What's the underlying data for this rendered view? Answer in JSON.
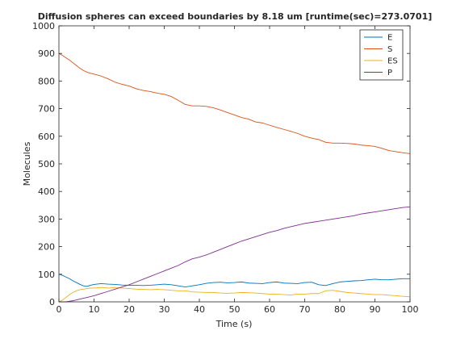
{
  "chart_data": {
    "type": "line",
    "title": "Diffusion spheres can exceed boundaries by 8.18 um [runtime(sec)=273.0701]",
    "xlabel": "Time (s)",
    "ylabel": "Molecules",
    "xlim": [
      0,
      100
    ],
    "ylim": [
      0,
      1000
    ],
    "xticks": [
      0,
      10,
      20,
      30,
      40,
      50,
      60,
      70,
      80,
      90,
      100
    ],
    "yticks": [
      0,
      100,
      200,
      300,
      400,
      500,
      600,
      700,
      800,
      900,
      1000
    ],
    "grid": false,
    "legend_position": "top-right",
    "series": [
      {
        "name": "E",
        "color": "#0072BD",
        "points": [
          [
            0,
            100
          ],
          [
            1,
            96
          ],
          [
            2,
            90
          ],
          [
            3,
            84
          ],
          [
            4,
            76
          ],
          [
            5,
            70
          ],
          [
            6,
            63
          ],
          [
            7,
            58
          ],
          [
            8,
            56
          ],
          [
            9,
            60
          ],
          [
            10,
            63
          ],
          [
            12,
            66
          ],
          [
            14,
            64
          ],
          [
            16,
            63
          ],
          [
            18,
            61
          ],
          [
            20,
            60
          ],
          [
            22,
            60
          ],
          [
            24,
            59
          ],
          [
            26,
            60
          ],
          [
            28,
            62
          ],
          [
            30,
            64
          ],
          [
            32,
            62
          ],
          [
            34,
            58
          ],
          [
            36,
            54
          ],
          [
            38,
            58
          ],
          [
            40,
            62
          ],
          [
            42,
            67
          ],
          [
            44,
            70
          ],
          [
            46,
            71
          ],
          [
            48,
            69
          ],
          [
            50,
            70
          ],
          [
            52,
            72
          ],
          [
            54,
            68
          ],
          [
            56,
            67
          ],
          [
            58,
            66
          ],
          [
            60,
            70
          ],
          [
            62,
            72
          ],
          [
            64,
            68
          ],
          [
            66,
            67
          ],
          [
            68,
            66
          ],
          [
            70,
            70
          ],
          [
            72,
            71
          ],
          [
            74,
            62
          ],
          [
            76,
            59
          ],
          [
            78,
            66
          ],
          [
            80,
            72
          ],
          [
            82,
            74
          ],
          [
            84,
            76
          ],
          [
            86,
            77
          ],
          [
            88,
            80
          ],
          [
            90,
            82
          ],
          [
            92,
            80
          ],
          [
            94,
            80
          ],
          [
            96,
            82
          ],
          [
            98,
            84
          ],
          [
            100,
            84
          ]
        ]
      },
      {
        "name": "S",
        "color": "#D95319",
        "points": [
          [
            0,
            900
          ],
          [
            1,
            893
          ],
          [
            2,
            884
          ],
          [
            3,
            876
          ],
          [
            4,
            866
          ],
          [
            5,
            856
          ],
          [
            6,
            846
          ],
          [
            7,
            838
          ],
          [
            8,
            832
          ],
          [
            9,
            828
          ],
          [
            10,
            825
          ],
          [
            12,
            818
          ],
          [
            14,
            808
          ],
          [
            16,
            796
          ],
          [
            18,
            788
          ],
          [
            20,
            782
          ],
          [
            22,
            772
          ],
          [
            24,
            766
          ],
          [
            26,
            762
          ],
          [
            28,
            756
          ],
          [
            30,
            752
          ],
          [
            32,
            744
          ],
          [
            34,
            730
          ],
          [
            36,
            715
          ],
          [
            38,
            710
          ],
          [
            40,
            710
          ],
          [
            42,
            708
          ],
          [
            44,
            703
          ],
          [
            46,
            695
          ],
          [
            48,
            686
          ],
          [
            50,
            677
          ],
          [
            52,
            668
          ],
          [
            54,
            662
          ],
          [
            56,
            652
          ],
          [
            58,
            648
          ],
          [
            60,
            640
          ],
          [
            62,
            632
          ],
          [
            64,
            625
          ],
          [
            66,
            618
          ],
          [
            68,
            610
          ],
          [
            70,
            600
          ],
          [
            72,
            593
          ],
          [
            74,
            588
          ],
          [
            76,
            578
          ],
          [
            78,
            575
          ],
          [
            80,
            575
          ],
          [
            82,
            574
          ],
          [
            84,
            572
          ],
          [
            86,
            568
          ],
          [
            88,
            566
          ],
          [
            90,
            563
          ],
          [
            92,
            556
          ],
          [
            94,
            548
          ],
          [
            96,
            544
          ],
          [
            98,
            540
          ],
          [
            100,
            537
          ]
        ]
      },
      {
        "name": "ES",
        "color": "#EDB120",
        "points": [
          [
            0,
            0
          ],
          [
            1,
            6
          ],
          [
            2,
            16
          ],
          [
            3,
            26
          ],
          [
            4,
            34
          ],
          [
            5,
            40
          ],
          [
            6,
            44
          ],
          [
            7,
            46
          ],
          [
            8,
            48
          ],
          [
            9,
            50
          ],
          [
            10,
            50
          ],
          [
            12,
            52
          ],
          [
            14,
            50
          ],
          [
            16,
            52
          ],
          [
            18,
            50
          ],
          [
            20,
            48
          ],
          [
            22,
            46
          ],
          [
            24,
            45
          ],
          [
            26,
            44
          ],
          [
            28,
            45
          ],
          [
            30,
            44
          ],
          [
            32,
            42
          ],
          [
            34,
            40
          ],
          [
            36,
            40
          ],
          [
            38,
            36
          ],
          [
            40,
            35
          ],
          [
            42,
            34
          ],
          [
            44,
            34
          ],
          [
            46,
            32
          ],
          [
            48,
            31
          ],
          [
            50,
            32
          ],
          [
            52,
            34
          ],
          [
            54,
            33
          ],
          [
            56,
            32
          ],
          [
            58,
            30
          ],
          [
            60,
            28
          ],
          [
            62,
            28
          ],
          [
            64,
            26
          ],
          [
            66,
            25
          ],
          [
            68,
            28
          ],
          [
            70,
            28
          ],
          [
            72,
            30
          ],
          [
            74,
            30
          ],
          [
            76,
            40
          ],
          [
            78,
            42
          ],
          [
            80,
            38
          ],
          [
            82,
            34
          ],
          [
            84,
            32
          ],
          [
            86,
            30
          ],
          [
            88,
            28
          ],
          [
            90,
            26
          ],
          [
            92,
            26
          ],
          [
            94,
            24
          ],
          [
            96,
            22
          ],
          [
            98,
            20
          ],
          [
            100,
            18
          ]
        ]
      },
      {
        "name": "P",
        "color": "#7E2F8E",
        "points": [
          [
            0,
            0
          ],
          [
            2,
            0
          ],
          [
            4,
            4
          ],
          [
            6,
            10
          ],
          [
            8,
            16
          ],
          [
            10,
            22
          ],
          [
            12,
            30
          ],
          [
            14,
            38
          ],
          [
            16,
            46
          ],
          [
            18,
            54
          ],
          [
            20,
            62
          ],
          [
            22,
            72
          ],
          [
            24,
            82
          ],
          [
            26,
            92
          ],
          [
            28,
            102
          ],
          [
            30,
            112
          ],
          [
            32,
            122
          ],
          [
            34,
            132
          ],
          [
            36,
            145
          ],
          [
            38,
            156
          ],
          [
            40,
            162
          ],
          [
            42,
            170
          ],
          [
            44,
            180
          ],
          [
            46,
            190
          ],
          [
            48,
            200
          ],
          [
            50,
            210
          ],
          [
            52,
            220
          ],
          [
            54,
            228
          ],
          [
            56,
            236
          ],
          [
            58,
            244
          ],
          [
            60,
            252
          ],
          [
            62,
            258
          ],
          [
            64,
            266
          ],
          [
            66,
            272
          ],
          [
            68,
            278
          ],
          [
            70,
            284
          ],
          [
            72,
            288
          ],
          [
            74,
            292
          ],
          [
            76,
            296
          ],
          [
            78,
            300
          ],
          [
            80,
            304
          ],
          [
            82,
            308
          ],
          [
            84,
            312
          ],
          [
            86,
            318
          ],
          [
            88,
            322
          ],
          [
            90,
            326
          ],
          [
            92,
            330
          ],
          [
            94,
            334
          ],
          [
            96,
            338
          ],
          [
            98,
            342
          ],
          [
            100,
            344
          ]
        ]
      }
    ]
  }
}
